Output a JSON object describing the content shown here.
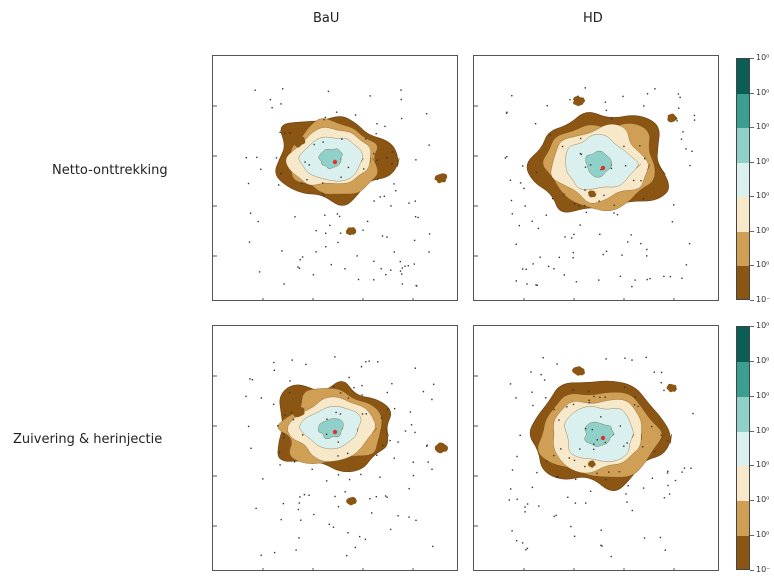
{
  "columns": [
    "BaU",
    "HD"
  ],
  "rows": [
    "Netto-onttrekking",
    "Zuivering & herinjectie"
  ],
  "colorbar": {
    "colors": [
      "#0b5e55",
      "#3a9e92",
      "#8fd0c8",
      "#d9f0ef",
      "#f6e8c8",
      "#cf9f56",
      "#8b5614"
    ],
    "tick_labels": [
      "10⁰",
      "10⁰",
      "10⁰",
      "10⁰",
      "10⁰",
      "10⁰",
      "10⁰",
      "10⁻"
    ]
  },
  "palette": {
    "dark_brown": "#8b5614",
    "light_brown": "#cf9f56",
    "cream": "#f6e8c8",
    "pale_cyan": "#d9f0ef",
    "mid_cyan": "#8fd0c8",
    "dark_teal": "#3a9e92",
    "source": "#e03030"
  }
}
